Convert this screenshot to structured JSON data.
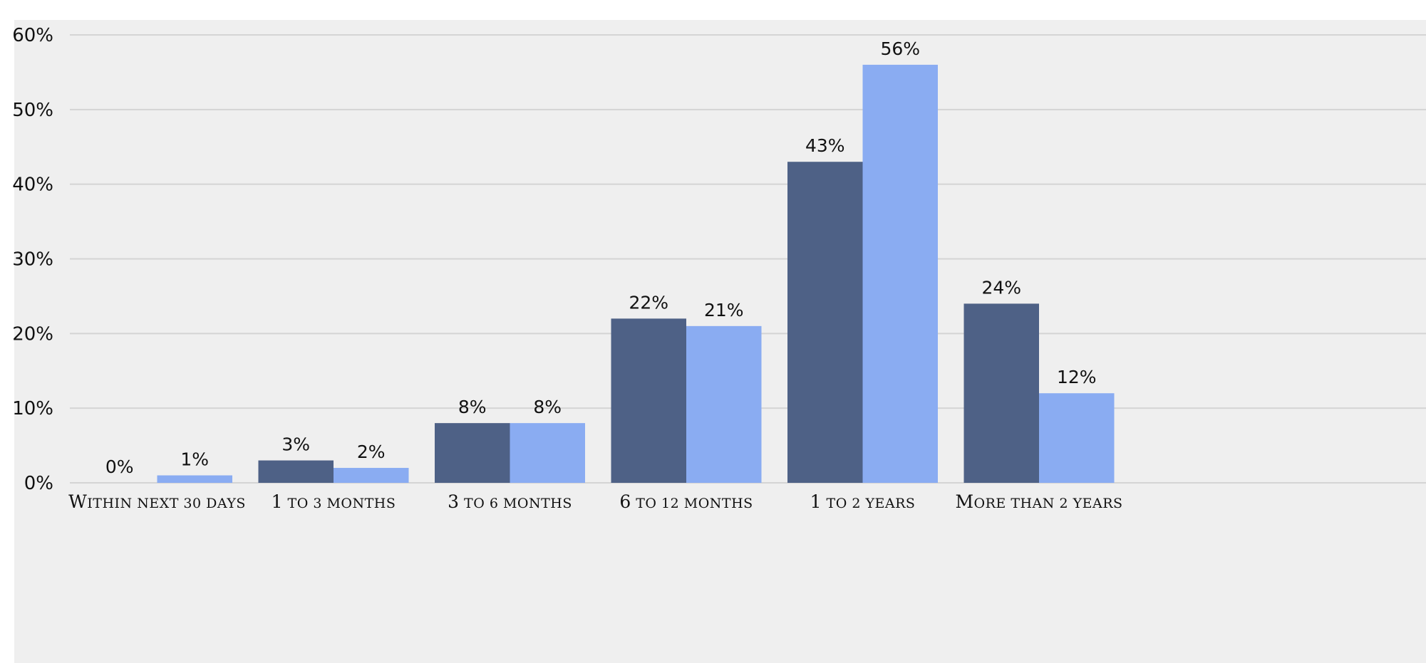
{
  "chart_data": {
    "type": "bar",
    "title": "",
    "xlabel": "",
    "ylabel": "",
    "categories": [
      "Within next 30 days",
      "1 to 3 months",
      "3 to 6 months",
      "6 to 12 months",
      "1 to 2 years",
      "More than 2 years"
    ],
    "series": [
      {
        "color": "#4e6186",
        "values": [
          0,
          3,
          8,
          22,
          43,
          24
        ]
      },
      {
        "color": "#8aacf2",
        "values": [
          1,
          2,
          8,
          21,
          56,
          12
        ]
      }
    ],
    "ylim": [
      0,
      60
    ],
    "yticks": [
      0,
      10,
      20,
      30,
      40,
      50,
      60
    ],
    "ytick_format": "percent",
    "grid": true,
    "legend": "none",
    "data_labels": true
  }
}
